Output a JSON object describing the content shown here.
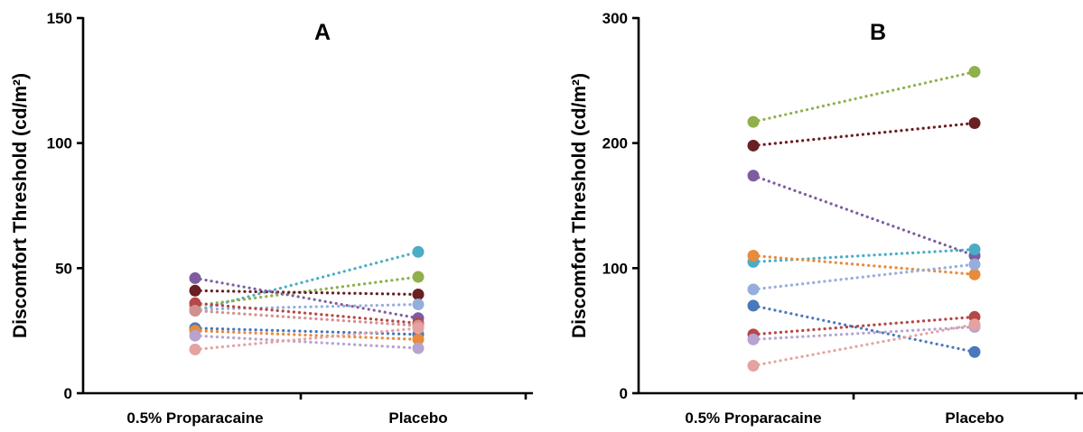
{
  "chart_data": [
    {
      "type": "line",
      "title": "A",
      "xlabel": "",
      "ylabel": "Discomfort Threshold (cd/m²)",
      "categories": [
        "0.5% Proparacaine",
        "Placebo"
      ],
      "ylim": [
        0,
        150
      ],
      "yticks": [
        0,
        50,
        100,
        150
      ],
      "line_style": "dotted",
      "series": [
        {
          "values": [
            33,
            56.5
          ],
          "color": "#4BACC6"
        },
        {
          "values": [
            35,
            46.5
          ],
          "color": "#8FB04A"
        },
        {
          "values": [
            41,
            39.5
          ],
          "color": "#6A1F22"
        },
        {
          "values": [
            46,
            30
          ],
          "color": "#7D5DA0"
        },
        {
          "values": [
            33.5,
            35.5
          ],
          "color": "#96AEDB"
        },
        {
          "values": [
            36,
            28
          ],
          "color": "#B54848"
        },
        {
          "values": [
            33,
            27
          ],
          "color": "#D48F8F"
        },
        {
          "values": [
            26,
            23.5
          ],
          "color": "#4A78BC"
        },
        {
          "values": [
            25,
            21.5
          ],
          "color": "#E88B3B"
        },
        {
          "values": [
            23,
            18
          ],
          "color": "#B6A3CF"
        },
        {
          "values": [
            17.5,
            26
          ],
          "color": "#E5A2A0"
        }
      ]
    },
    {
      "type": "line",
      "title": "B",
      "xlabel": "",
      "ylabel": "Discomfort Threshold (cd/m²)",
      "categories": [
        "0.5% Proparacaine",
        "Placebo"
      ],
      "ylim": [
        0,
        300
      ],
      "yticks": [
        0,
        100,
        200,
        300
      ],
      "line_style": "dotted",
      "series": [
        {
          "values": [
            217,
            257
          ],
          "color": "#8FB04A"
        },
        {
          "values": [
            198,
            216
          ],
          "color": "#6A1F22"
        },
        {
          "values": [
            174,
            110
          ],
          "color": "#7D5DA0"
        },
        {
          "values": [
            105,
            115
          ],
          "color": "#4BACC6"
        },
        {
          "values": [
            110,
            95
          ],
          "color": "#E88B3B"
        },
        {
          "values": [
            83,
            103
          ],
          "color": "#96AEDB"
        },
        {
          "values": [
            70,
            33
          ],
          "color": "#4A78BC"
        },
        {
          "values": [
            47,
            61
          ],
          "color": "#B54848"
        },
        {
          "values": [
            43,
            53
          ],
          "color": "#B6A3CF"
        },
        {
          "values": [
            22,
            55
          ],
          "color": "#E5A2A0"
        }
      ]
    }
  ]
}
